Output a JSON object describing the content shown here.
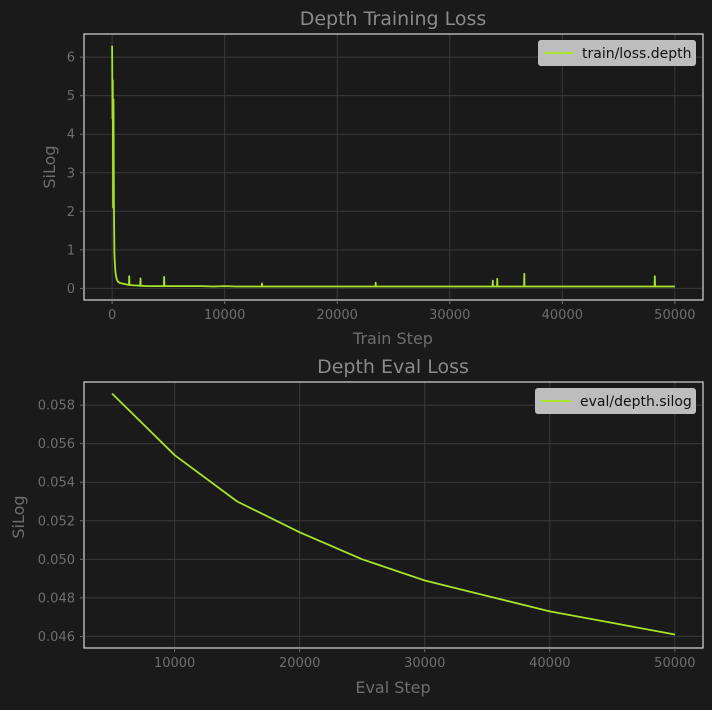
{
  "theme": {
    "background": "#1a1a1a",
    "axes_face": "#1a1a1a",
    "frame": "#d8d8d8",
    "grid": "#383838",
    "text": "#8a8a8a",
    "tick_text": "#6e6e6e",
    "line": "#a8e22a",
    "legend_face": "#bdbdbd",
    "legend_text": "#111111"
  },
  "chart_data": [
    {
      "type": "line",
      "title": "Depth Training Loss",
      "xlabel": "Train Step",
      "ylabel": "SiLog",
      "xlim": [
        -2500,
        52500
      ],
      "ylim": [
        -0.3,
        6.6
      ],
      "xticks": [
        0,
        10000,
        20000,
        30000,
        40000,
        50000
      ],
      "xtick_labels": [
        "0",
        "10000",
        "20000",
        "30000",
        "40000",
        "50000"
      ],
      "yticks": [
        0,
        1,
        2,
        3,
        4,
        5,
        6
      ],
      "ytick_labels": [
        "0",
        "1",
        "2",
        "3",
        "4",
        "5",
        "6"
      ],
      "grid": true,
      "legend": "top-right",
      "series": [
        {
          "name": "train/loss.depth",
          "x": [
            0,
            30,
            60,
            90,
            120,
            160,
            200,
            250,
            300,
            400,
            500,
            700,
            1000,
            1500,
            1520,
            1540,
            2000,
            2500,
            2520,
            2540,
            3000,
            4000,
            4600,
            4620,
            4640,
            5000,
            6000,
            7000,
            8000,
            9000,
            10000,
            11000,
            12000,
            13000,
            13300,
            13320,
            13340,
            14000,
            15000,
            16000,
            17000,
            18000,
            19000,
            20000,
            21000,
            22000,
            23000,
            23400,
            23420,
            23440,
            24000,
            25000,
            26000,
            27000,
            28000,
            29000,
            30000,
            31000,
            32000,
            33000,
            33800,
            33820,
            33840,
            34200,
            34220,
            34240,
            35000,
            36000,
            36600,
            36620,
            36640,
            37000,
            38000,
            39000,
            40000,
            41000,
            42000,
            43000,
            44000,
            45000,
            46000,
            47000,
            48000,
            48200,
            48220,
            48240,
            49000,
            50000
          ],
          "y": [
            6.3,
            4.4,
            5.4,
            2.1,
            4.9,
            2.2,
            0.9,
            0.6,
            0.4,
            0.25,
            0.18,
            0.14,
            0.12,
            0.09,
            0.32,
            0.09,
            0.08,
            0.07,
            0.26,
            0.07,
            0.06,
            0.06,
            0.06,
            0.3,
            0.06,
            0.06,
            0.06,
            0.06,
            0.06,
            0.05,
            0.06,
            0.05,
            0.05,
            0.05,
            0.05,
            0.13,
            0.05,
            0.05,
            0.05,
            0.05,
            0.05,
            0.05,
            0.05,
            0.05,
            0.05,
            0.05,
            0.05,
            0.05,
            0.15,
            0.05,
            0.05,
            0.05,
            0.05,
            0.05,
            0.05,
            0.05,
            0.05,
            0.05,
            0.05,
            0.05,
            0.05,
            0.2,
            0.05,
            0.05,
            0.25,
            0.05,
            0.05,
            0.05,
            0.05,
            0.38,
            0.05,
            0.05,
            0.05,
            0.05,
            0.05,
            0.05,
            0.05,
            0.05,
            0.05,
            0.05,
            0.05,
            0.05,
            0.05,
            0.05,
            0.32,
            0.05,
            0.05,
            0.05
          ]
        }
      ]
    },
    {
      "type": "line",
      "title": "Depth Eval Loss",
      "xlabel": "Eval Step",
      "ylabel": "SiLog",
      "xlim": [
        2750,
        52250
      ],
      "ylim": [
        0.0454,
        0.0592
      ],
      "xticks": [
        10000,
        20000,
        30000,
        40000,
        50000
      ],
      "xtick_labels": [
        "10000",
        "20000",
        "30000",
        "40000",
        "50000"
      ],
      "yticks": [
        0.046,
        0.048,
        0.05,
        0.052,
        0.054,
        0.056,
        0.058
      ],
      "ytick_labels": [
        "0.046",
        "0.048",
        "0.050",
        "0.052",
        "0.054",
        "0.056",
        "0.058"
      ],
      "grid": true,
      "legend": "top-right",
      "series": [
        {
          "name": "eval/depth.silog",
          "x": [
            5000,
            10000,
            15000,
            20000,
            25000,
            30000,
            35000,
            40000,
            45000,
            50000
          ],
          "y": [
            0.0586,
            0.0554,
            0.053,
            0.0514,
            0.05,
            0.0489,
            0.0481,
            0.0473,
            0.0467,
            0.0461
          ]
        }
      ]
    }
  ]
}
